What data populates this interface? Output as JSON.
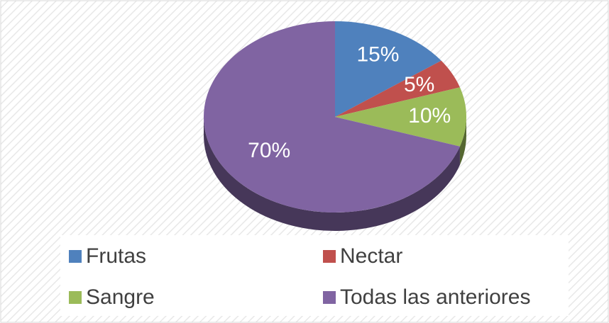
{
  "chart_data": {
    "type": "pie",
    "categories": [
      "Frutas",
      "Nectar",
      "Sangre",
      "Todas las anteriores"
    ],
    "values": [
      15,
      5,
      10,
      70
    ],
    "value_labels": [
      "15%",
      "5%",
      "10%",
      "70%"
    ],
    "colors": [
      "#4f81bd",
      "#c0504d",
      "#9bbb59",
      "#8064a2"
    ],
    "legend": "bottom"
  }
}
